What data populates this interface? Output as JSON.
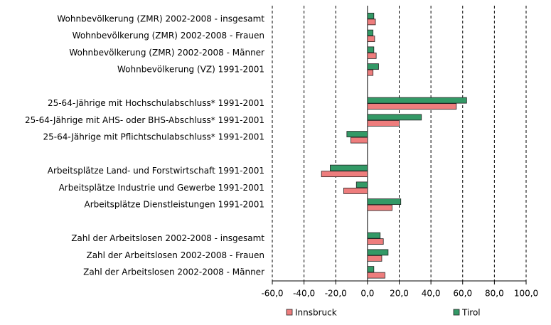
{
  "chart_data": {
    "type": "hbar",
    "categories": [
      "Wohnbevölkerung (ZMR) 2002-2008 - insgesamt",
      "Wohnbevölkerung (ZMR) 2002-2008 - Frauen",
      "Wohnbevölkerung (ZMR) 2002-2008 - Männer",
      "Wohnbevölkerung (VZ) 1991-2001",
      null,
      "25-64-Jährige mit Hochschulabschluss* 1991-2001",
      "25-64-Jährige mit AHS- oder BHS-Abschluss* 1991-2001",
      "25-64-Jährige mit Pflichtschulabschluss* 1991-2001",
      null,
      "Arbeitsplätze Land- und Forstwirtschaft 1991-2001",
      "Arbeitsplätze Industrie und Gewerbe 1991-2001",
      "Arbeitsplätze Dienstleistungen 1991-2001",
      null,
      "Zahl der Arbeitslosen 2002-2008 - insgesamt",
      "Zahl der Arbeitslosen 2002-2008 - Frauen",
      "Zahl der Arbeitslosen 2002-2008 - Männer"
    ],
    "series": [
      {
        "name": "Innsbruck",
        "color": "#ee7d7d",
        "values": [
          5,
          4.5,
          5.5,
          3.5,
          null,
          56,
          20,
          -10.5,
          null,
          -29,
          -15,
          15.5,
          null,
          10,
          9,
          11
        ]
      },
      {
        "name": "Tirol",
        "color": "#339966",
        "values": [
          4,
          3.5,
          4,
          7,
          null,
          62.5,
          34,
          -13,
          null,
          -23.5,
          -7,
          21,
          null,
          8,
          13,
          4
        ]
      }
    ],
    "xlim": [
      -60,
      100
    ],
    "xticks": [
      {
        "value": -60,
        "label": "-60,0"
      },
      {
        "value": -40,
        "label": "-40,0"
      },
      {
        "value": -20,
        "label": "-20,0"
      },
      {
        "value": 0,
        "label": "0,0"
      },
      {
        "value": 20,
        "label": "20,0"
      },
      {
        "value": 40,
        "label": "40,0"
      },
      {
        "value": 60,
        "label": "60,0"
      },
      {
        "value": 80,
        "label": "80,0"
      },
      {
        "value": 100,
        "label": "100,0"
      }
    ],
    "grid": true,
    "legend": "bottom"
  }
}
